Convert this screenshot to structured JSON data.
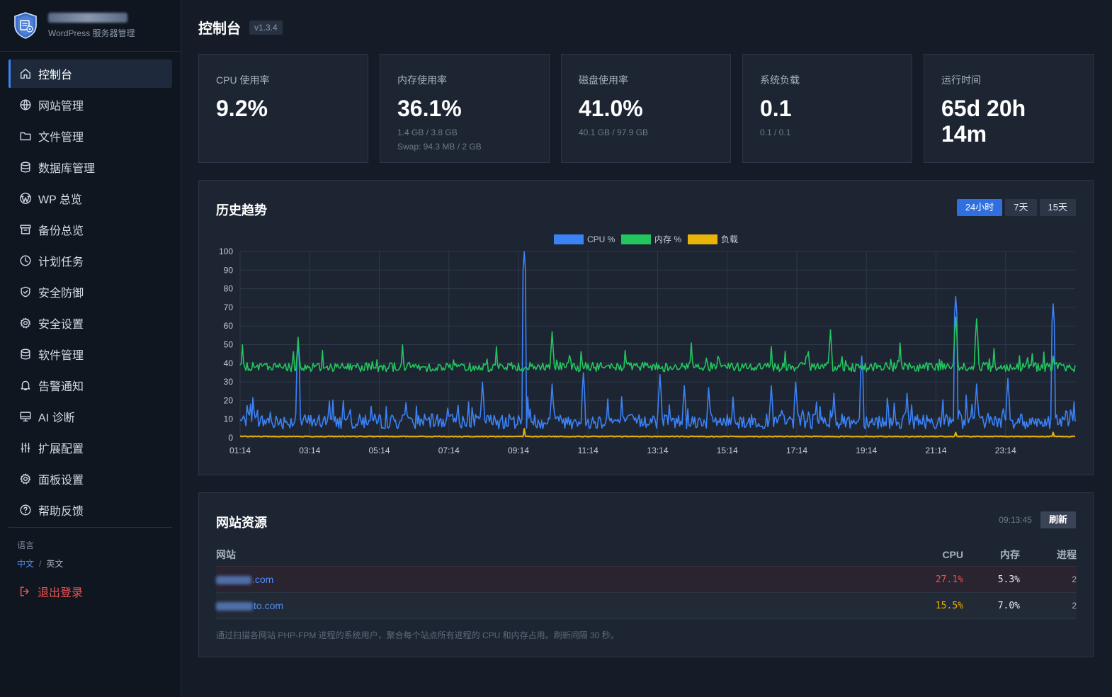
{
  "sidebar": {
    "subtitle": "WordPress 服务器管理",
    "items": [
      {
        "label": "控制台",
        "icon": "home-icon"
      },
      {
        "label": "网站管理",
        "icon": "globe-icon"
      },
      {
        "label": "文件管理",
        "icon": "folder-icon"
      },
      {
        "label": "数据库管理",
        "icon": "database-icon"
      },
      {
        "label": "WP 总览",
        "icon": "wordpress-icon"
      },
      {
        "label": "备份总览",
        "icon": "archive-icon"
      },
      {
        "label": "计划任务",
        "icon": "clock-icon"
      },
      {
        "label": "安全防御",
        "icon": "shield-icon"
      },
      {
        "label": "安全设置",
        "icon": "gear-icon"
      },
      {
        "label": "软件管理",
        "icon": "database-icon"
      },
      {
        "label": "告警通知",
        "icon": "bell-icon"
      },
      {
        "label": "AI 诊断",
        "icon": "monitor-icon"
      },
      {
        "label": "扩展配置",
        "icon": "sliders-icon"
      },
      {
        "label": "面板设置",
        "icon": "gear-icon"
      },
      {
        "label": "帮助反馈",
        "icon": "help-circle-icon"
      }
    ],
    "language_label": "语言",
    "lang_current": "中文",
    "lang_other": "英文",
    "logout": "退出登录"
  },
  "header": {
    "title": "控制台",
    "version": "v1.3.4"
  },
  "stats": {
    "cpu": {
      "label": "CPU 使用率",
      "value": "9.2%"
    },
    "mem": {
      "label": "内存使用率",
      "value": "36.1%",
      "sub1": "1.4 GB / 3.8 GB",
      "sub2": "Swap: 94.3 MB / 2 GB"
    },
    "disk": {
      "label": "磁盘使用率",
      "value": "41.0%",
      "sub1": "40.1 GB / 97.9 GB"
    },
    "load": {
      "label": "系统负载",
      "value": "0.1",
      "sub1": "0.1 / 0.1"
    },
    "uptime": {
      "label": "运行时间",
      "value_line1": "65d 20h",
      "value_line2": "14m"
    }
  },
  "trend": {
    "title": "历史趋势",
    "ranges": [
      "24小时",
      "7天",
      "15天"
    ],
    "active_range": "24小时"
  },
  "chart_data": {
    "type": "line",
    "title": "",
    "xlabel": "",
    "ylabel": "",
    "ylim": [
      0,
      100
    ],
    "yticks": [
      0,
      10,
      20,
      30,
      40,
      50,
      60,
      70,
      80,
      90,
      100
    ],
    "x_ticks": [
      "01:14",
      "03:14",
      "05:14",
      "07:14",
      "09:14",
      "11:14",
      "13:14",
      "15:14",
      "17:14",
      "19:14",
      "21:14",
      "23:14"
    ],
    "x_range_hours": [
      1.233,
      25.233
    ],
    "grid": true,
    "legend_position": "top-center",
    "series": [
      {
        "name": "CPU %",
        "color": "#3b82f6",
        "baseline": 8,
        "spikes": [
          [
            1.35,
            15
          ],
          [
            2.9,
            51
          ],
          [
            4.2,
            20
          ],
          [
            5.0,
            17
          ],
          [
            6.0,
            19
          ],
          [
            7.2,
            16
          ],
          [
            8.2,
            30
          ],
          [
            9.4,
            100
          ],
          [
            10.2,
            29
          ],
          [
            11.1,
            35
          ],
          [
            11.8,
            21
          ],
          [
            13.3,
            34
          ],
          [
            14.0,
            28
          ],
          [
            14.7,
            27
          ],
          [
            15.4,
            22
          ],
          [
            16.5,
            28
          ],
          [
            17.2,
            30
          ],
          [
            18.3,
            24
          ],
          [
            19.1,
            44
          ],
          [
            20.4,
            24
          ],
          [
            21.8,
            76
          ],
          [
            22.4,
            29
          ],
          [
            23.3,
            32
          ],
          [
            24.6,
            72
          ],
          [
            25.1,
            15
          ]
        ]
      },
      {
        "name": "内存 %",
        "color": "#22c55e",
        "baseline": 38,
        "spikes": [
          [
            1.3,
            50
          ],
          [
            2.9,
            54
          ],
          [
            3.6,
            47
          ],
          [
            5.9,
            50
          ],
          [
            8.6,
            49
          ],
          [
            10.2,
            57
          ],
          [
            12.3,
            47
          ],
          [
            14.2,
            51
          ],
          [
            16.5,
            49
          ],
          [
            18.2,
            58
          ],
          [
            20.2,
            51
          ],
          [
            21.8,
            65
          ],
          [
            22.4,
            64
          ],
          [
            22.9,
            48
          ]
        ]
      },
      {
        "name": "负载",
        "color": "#eab308",
        "baseline": 0.5,
        "spikes": [
          [
            9.4,
            5
          ],
          [
            21.8,
            3
          ],
          [
            24.6,
            3
          ]
        ]
      }
    ]
  },
  "sites_panel": {
    "title": "网站资源",
    "timestamp": "09:13:45",
    "refresh": "刷新",
    "columns": {
      "site": "网站",
      "cpu": "CPU",
      "mem": "内存",
      "proc": "进程"
    },
    "rows": [
      {
        "site_suffix": ".com",
        "cpu": "27.1%",
        "mem": "5.3%",
        "proc": "2",
        "level": "hot"
      },
      {
        "site_suffix": "to.com",
        "cpu": "15.5%",
        "mem": "7.0%",
        "proc": "2",
        "level": "warm"
      }
    ],
    "note": "通过扫描各网站 PHP-FPM 进程的系统用户，聚合每个站点所有进程的 CPU 和内存占用。刷新间隔 30 秒。"
  }
}
